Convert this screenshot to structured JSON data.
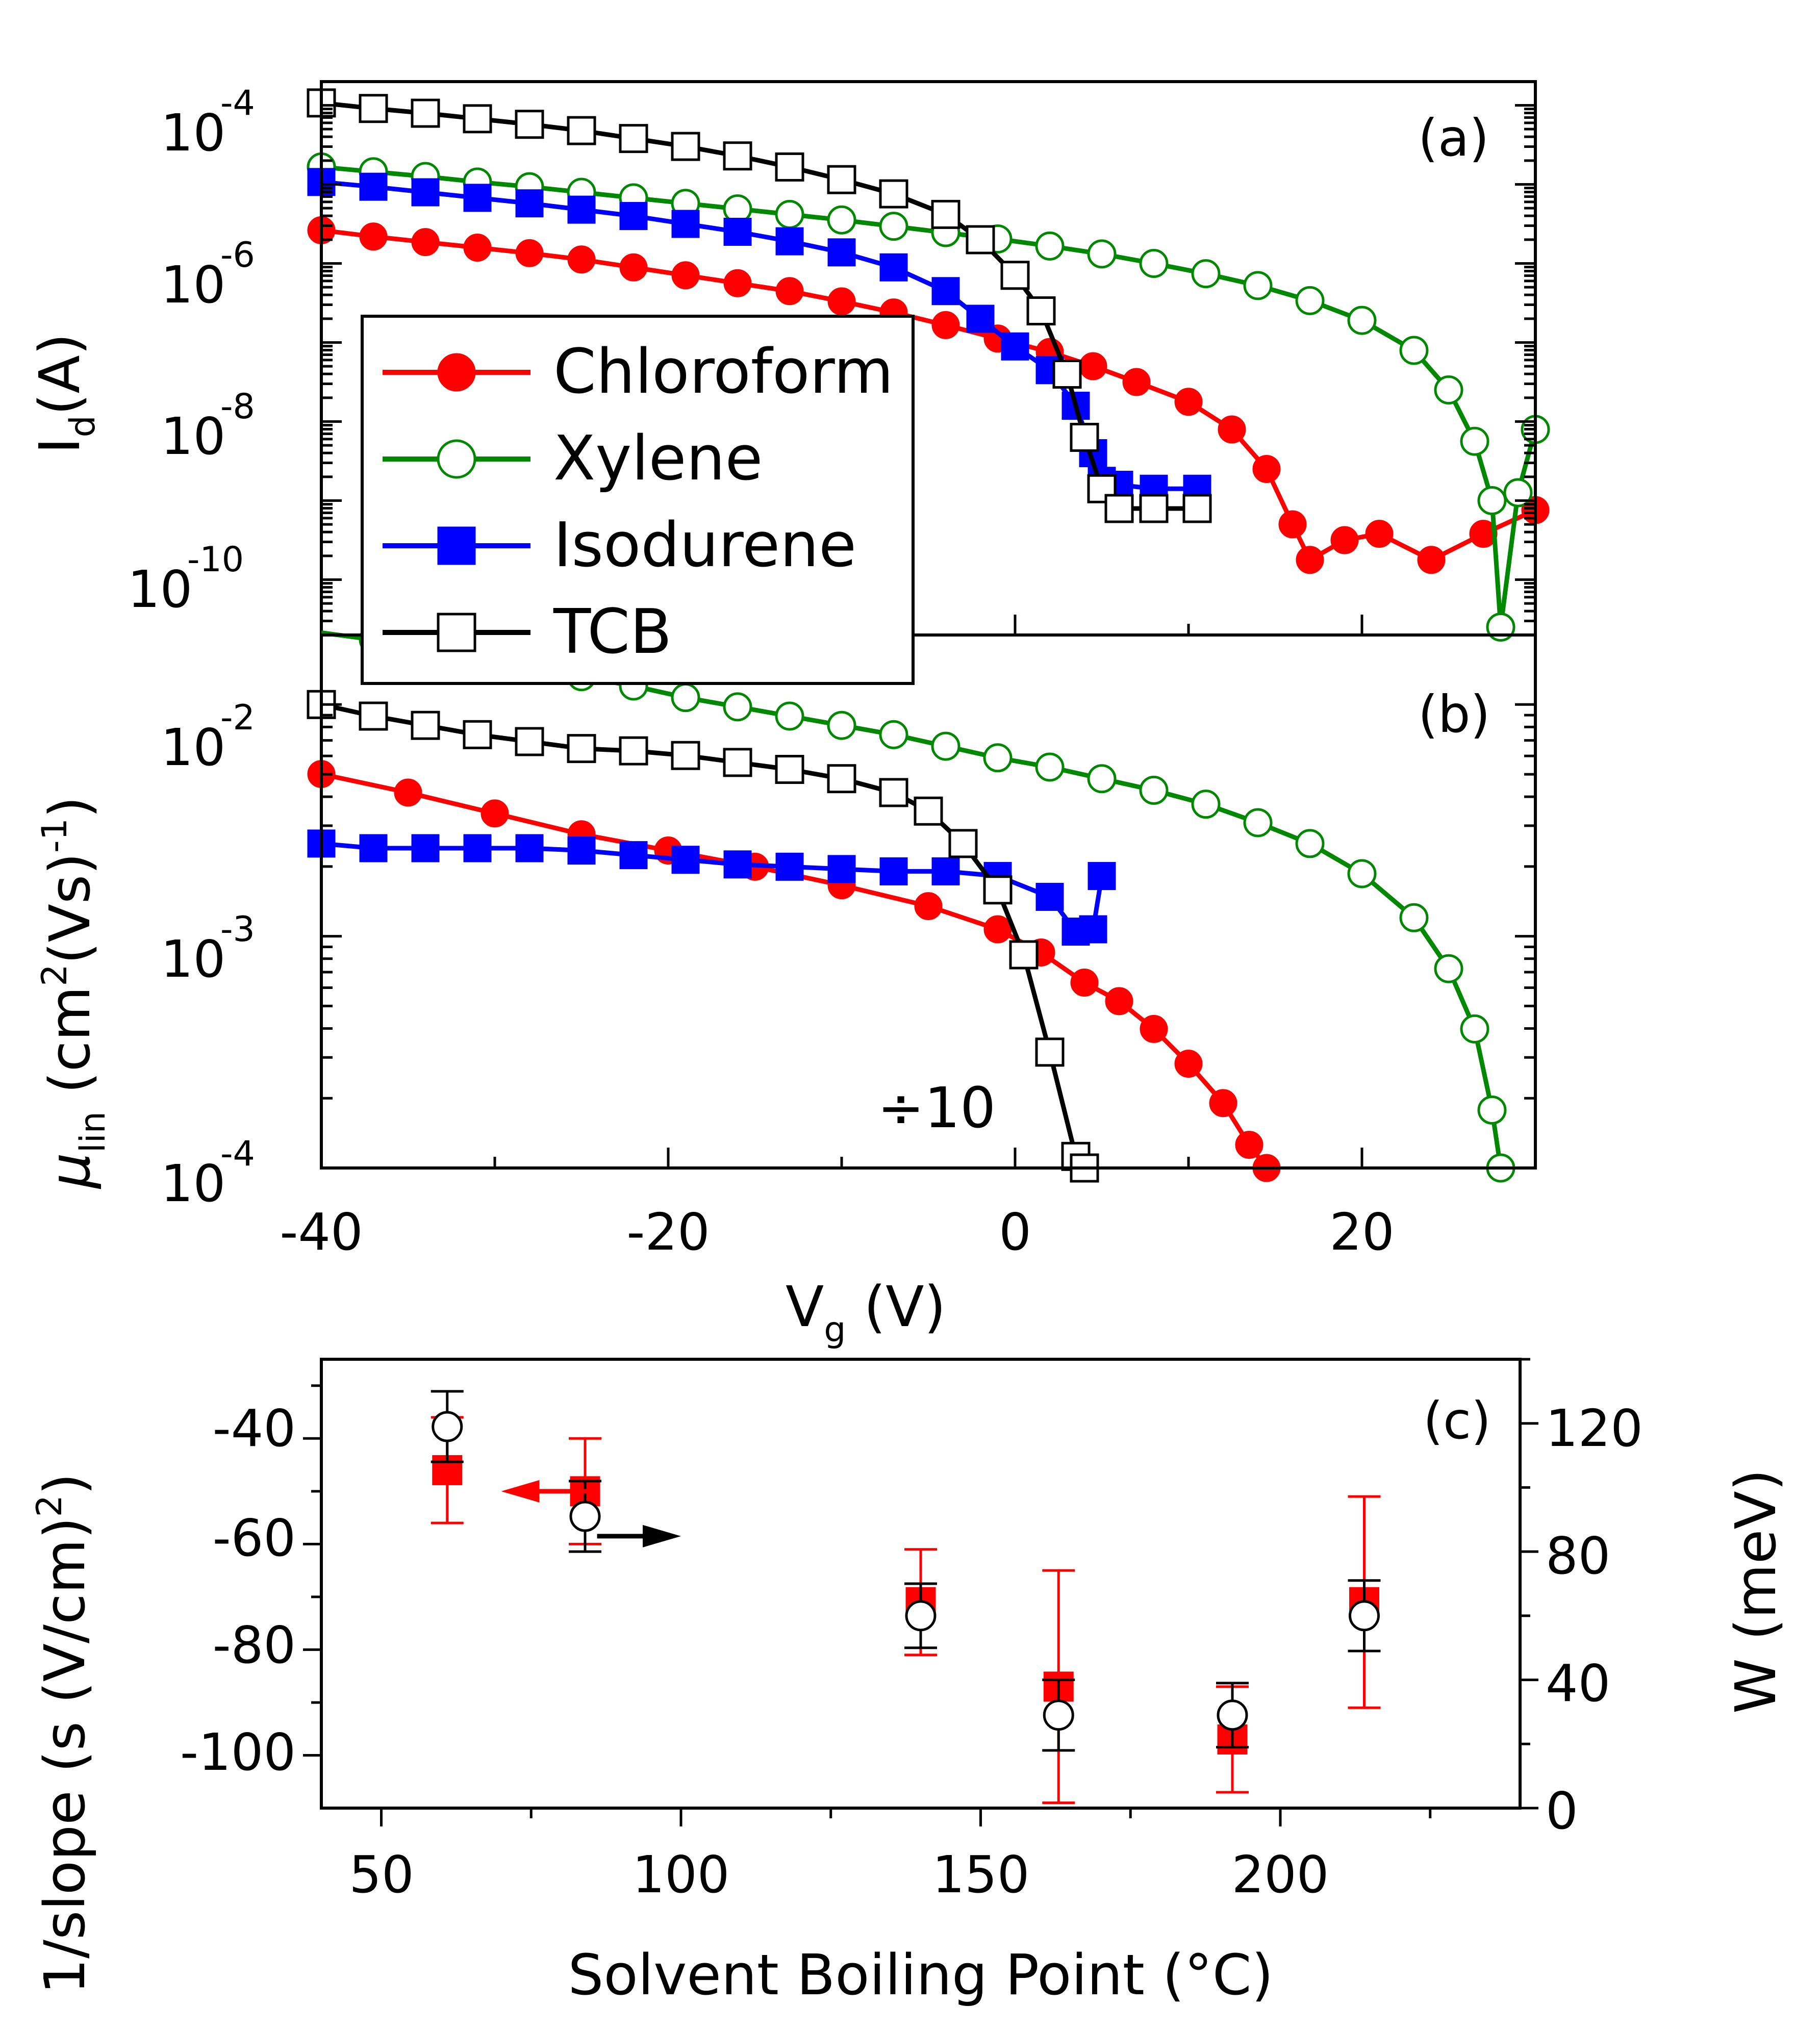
{
  "chart_data": [
    {
      "panel": "(a)",
      "type": "line",
      "xscale": "linear",
      "yscale": "log",
      "xlim": [
        -40,
        30
      ],
      "ylim_exp": [
        -10.7,
        -3.7
      ],
      "xlabel": "",
      "ylabel": "I",
      "ylabel_sub": "d",
      "ylabel_tail": "(A)",
      "ytick_exponents": [
        -4,
        -6,
        -8,
        -10
      ],
      "ytick_base": "10",
      "ytick_labels": [
        "-4",
        "-6",
        "-8",
        "-10"
      ],
      "legend_position": "center-left",
      "series": [
        {
          "name": "Chloroform",
          "color": "#ff0000",
          "marker": "filled-circle",
          "points": [
            [
              -40,
              -5.58
            ],
            [
              -37,
              -5.66
            ],
            [
              -34,
              -5.73
            ],
            [
              -31,
              -5.8
            ],
            [
              -28,
              -5.87
            ],
            [
              -25,
              -5.95
            ],
            [
              -22,
              -6.05
            ],
            [
              -19,
              -6.15
            ],
            [
              -16,
              -6.25
            ],
            [
              -13,
              -6.35
            ],
            [
              -10,
              -6.48
            ],
            [
              -7,
              -6.62
            ],
            [
              -4,
              -6.78
            ],
            [
              -1,
              -6.95
            ],
            [
              2,
              -7.12
            ],
            [
              4.5,
              -7.3
            ],
            [
              7,
              -7.5
            ],
            [
              10,
              -7.75
            ],
            [
              12.5,
              -8.1
            ],
            [
              14.5,
              -8.6
            ],
            [
              16,
              -9.3
            ],
            [
              17,
              -9.75
            ],
            [
              19,
              -9.5
            ],
            [
              21,
              -9.42
            ],
            [
              24,
              -9.75
            ],
            [
              27,
              -9.42
            ],
            [
              30,
              -9.12
            ]
          ]
        },
        {
          "name": "Xylene",
          "color": "#008800",
          "marker": "open-circle",
          "points": [
            [
              -40,
              -4.78
            ],
            [
              -37,
              -4.84
            ],
            [
              -34,
              -4.9
            ],
            [
              -31,
              -4.97
            ],
            [
              -28,
              -5.03
            ],
            [
              -25,
              -5.1
            ],
            [
              -22,
              -5.17
            ],
            [
              -19,
              -5.24
            ],
            [
              -16,
              -5.31
            ],
            [
              -13,
              -5.38
            ],
            [
              -10,
              -5.45
            ],
            [
              -7,
              -5.53
            ],
            [
              -4,
              -5.61
            ],
            [
              -1,
              -5.69
            ],
            [
              2,
              -5.78
            ],
            [
              5,
              -5.88
            ],
            [
              8,
              -6.0
            ],
            [
              11,
              -6.13
            ],
            [
              14,
              -6.28
            ],
            [
              17,
              -6.47
            ],
            [
              20,
              -6.72
            ],
            [
              23,
              -7.1
            ],
            [
              25,
              -7.6
            ],
            [
              26.5,
              -8.25
            ],
            [
              27.5,
              -9.0
            ],
            [
              28,
              -10.6
            ],
            [
              29,
              -8.9
            ],
            [
              30,
              -8.1
            ]
          ]
        },
        {
          "name": "Isodurene",
          "color": "#0000ff",
          "marker": "filled-square",
          "points": [
            [
              -40,
              -4.97
            ],
            [
              -37,
              -5.03
            ],
            [
              -34,
              -5.1
            ],
            [
              -31,
              -5.17
            ],
            [
              -28,
              -5.24
            ],
            [
              -25,
              -5.32
            ],
            [
              -22,
              -5.4
            ],
            [
              -19,
              -5.5
            ],
            [
              -16,
              -5.6
            ],
            [
              -13,
              -5.72
            ],
            [
              -10,
              -5.86
            ],
            [
              -7,
              -6.05
            ],
            [
              -4,
              -6.35
            ],
            [
              -2,
              -6.7
            ],
            [
              0,
              -7.05
            ],
            [
              2,
              -7.35
            ],
            [
              3.5,
              -7.8
            ],
            [
              4.5,
              -8.4
            ],
            [
              5,
              -8.75
            ],
            [
              6,
              -8.8
            ],
            [
              8,
              -8.85
            ],
            [
              10.5,
              -8.85
            ]
          ]
        },
        {
          "name": "TCB",
          "color": "#000000",
          "marker": "open-square",
          "points": [
            [
              -40,
              -3.97
            ],
            [
              -37,
              -4.04
            ],
            [
              -34,
              -4.1
            ],
            [
              -31,
              -4.17
            ],
            [
              -28,
              -4.24
            ],
            [
              -25,
              -4.32
            ],
            [
              -22,
              -4.42
            ],
            [
              -19,
              -4.52
            ],
            [
              -16,
              -4.64
            ],
            [
              -13,
              -4.78
            ],
            [
              -10,
              -4.94
            ],
            [
              -7,
              -5.12
            ],
            [
              -4,
              -5.38
            ],
            [
              -2,
              -5.7
            ],
            [
              0,
              -6.15
            ],
            [
              1.5,
              -6.6
            ],
            [
              3,
              -7.4
            ],
            [
              4,
              -8.2
            ],
            [
              5,
              -8.85
            ],
            [
              6,
              -9.1
            ],
            [
              8,
              -9.1
            ],
            [
              10.5,
              -9.1
            ]
          ]
        }
      ]
    },
    {
      "panel": "(b)",
      "type": "line",
      "xscale": "linear",
      "yscale": "log",
      "xlim": [
        -40,
        30
      ],
      "ylim_exp": [
        -4,
        -1.7
      ],
      "xlabel": "V",
      "xlabel_sub": "g",
      "xlabel_tail": " (V)",
      "xticks": [
        -40,
        -20,
        0,
        20
      ],
      "xtick_labels": [
        "-40",
        "-20",
        "0",
        "20"
      ],
      "ylabel_mu": "μ",
      "ylabel_mu_sub": "lin",
      "ylabel_head": " (cm",
      "ylabel_sup2": "2",
      "ylabel_mid": "(Vs)",
      "ylabel_sup_neg1": "-1",
      "ylabel_close": ")",
      "ytick_exponents": [
        -2,
        -3,
        -4
      ],
      "ytick_base": "10",
      "ytick_labels": [
        "-2",
        "-3",
        "-4"
      ],
      "annotation": "÷10",
      "series": [
        {
          "name": "Chloroform",
          "color": "#ff0000",
          "marker": "filled-circle",
          "points": [
            [
              -40,
              -2.3
            ],
            [
              -35,
              -2.38
            ],
            [
              -30,
              -2.47
            ],
            [
              -25,
              -2.56
            ],
            [
              -20,
              -2.63
            ],
            [
              -15,
              -2.7
            ],
            [
              -10,
              -2.78
            ],
            [
              -5,
              -2.87
            ],
            [
              -1,
              -2.97
            ],
            [
              1.5,
              -3.07
            ],
            [
              4,
              -3.2
            ],
            [
              6,
              -3.28
            ],
            [
              8,
              -3.4
            ],
            [
              10,
              -3.55
            ],
            [
              12,
              -3.72
            ],
            [
              13.5,
              -3.9
            ],
            [
              14.5,
              -4.0
            ]
          ]
        },
        {
          "name": "Xylene",
          "color": "#008800",
          "marker": "open-circle",
          "points": [
            [
              -40,
              -1.69
            ],
            [
              -37,
              -1.72
            ],
            [
              -34,
              -1.76
            ],
            [
              -31,
              -1.8
            ],
            [
              -28,
              -1.84
            ],
            [
              -25,
              -1.88
            ],
            [
              -22,
              -1.92
            ],
            [
              -19,
              -1.97
            ],
            [
              -16,
              -2.01
            ],
            [
              -13,
              -2.05
            ],
            [
              -10,
              -2.09
            ],
            [
              -7,
              -2.13
            ],
            [
              -4,
              -2.18
            ],
            [
              -1,
              -2.23
            ],
            [
              2,
              -2.27
            ],
            [
              5,
              -2.32
            ],
            [
              8,
              -2.37
            ],
            [
              11,
              -2.43
            ],
            [
              14,
              -2.51
            ],
            [
              17,
              -2.6
            ],
            [
              20,
              -2.73
            ],
            [
              23,
              -2.92
            ],
            [
              25,
              -3.14
            ],
            [
              26.5,
              -3.4
            ],
            [
              27.5,
              -3.75
            ],
            [
              28,
              -4.0
            ]
          ]
        },
        {
          "name": "Isodurene",
          "color": "#0000ff",
          "marker": "filled-square",
          "points": [
            [
              -40,
              -2.6
            ],
            [
              -37,
              -2.62
            ],
            [
              -34,
              -2.62
            ],
            [
              -31,
              -2.62
            ],
            [
              -28,
              -2.62
            ],
            [
              -25,
              -2.63
            ],
            [
              -22,
              -2.65
            ],
            [
              -19,
              -2.67
            ],
            [
              -16,
              -2.69
            ],
            [
              -13,
              -2.7
            ],
            [
              -10,
              -2.71
            ],
            [
              -7,
              -2.72
            ],
            [
              -4,
              -2.72
            ],
            [
              -1,
              -2.74
            ],
            [
              2,
              -2.83
            ],
            [
              3.5,
              -2.98
            ],
            [
              4.5,
              -2.97
            ],
            [
              5,
              -2.74
            ]
          ]
        },
        {
          "name": "TCB",
          "color": "#000000",
          "marker": "open-square",
          "points": [
            [
              -40,
              -2.0
            ],
            [
              -37,
              -2.05
            ],
            [
              -34,
              -2.09
            ],
            [
              -31,
              -2.13
            ],
            [
              -28,
              -2.16
            ],
            [
              -25,
              -2.19
            ],
            [
              -22,
              -2.2
            ],
            [
              -19,
              -2.22
            ],
            [
              -16,
              -2.25
            ],
            [
              -13,
              -2.28
            ],
            [
              -10,
              -2.32
            ],
            [
              -7,
              -2.38
            ],
            [
              -5,
              -2.46
            ],
            [
              -3,
              -2.6
            ],
            [
              -1,
              -2.8
            ],
            [
              0.5,
              -3.08
            ],
            [
              2,
              -3.5
            ],
            [
              3.5,
              -3.95
            ],
            [
              4,
              -4.0
            ]
          ]
        }
      ]
    },
    {
      "panel": "(c)",
      "type": "scatter",
      "xlim": [
        40,
        240
      ],
      "ylim": [
        -110,
        -25
      ],
      "y2lim": [
        0,
        140
      ],
      "xlabel": "Solvent Boiling Point (°C)",
      "ylabel_head": "1/slope (s (V/cm)",
      "ylabel_sup": "2",
      "ylabel_tail": ")",
      "y2label": "W (meV)",
      "xticks": [
        50,
        100,
        150,
        200
      ],
      "xtick_labels": [
        "50",
        "100",
        "150",
        "200"
      ],
      "yticks": [
        -40,
        -60,
        -80,
        -100
      ],
      "ytick_labels": [
        "-40",
        "-60",
        "-80",
        "-100"
      ],
      "y2ticks": [
        120,
        80,
        40,
        0
      ],
      "y2tick_labels": [
        "120",
        "80",
        "40",
        "0"
      ],
      "series": [
        {
          "name": "1/slope",
          "axis": "left",
          "color": "#ff0000",
          "marker": "filled-square",
          "points": [
            {
              "x": 61,
              "y": -46,
              "err": 10
            },
            {
              "x": 84,
              "y": -50,
              "err": 10
            },
            {
              "x": 140,
              "y": -71,
              "err": 10
            },
            {
              "x": 163,
              "y": -87,
              "err": 22
            },
            {
              "x": 192,
              "y": -97,
              "err": 10
            },
            {
              "x": 214,
              "y": -71,
              "err": 20
            }
          ]
        },
        {
          "name": "W",
          "axis": "right",
          "color": "#000000",
          "marker": "open-circle",
          "points": [
            {
              "x": 61,
              "y": 119,
              "err": 11
            },
            {
              "x": 84,
              "y": 91,
              "err": 11
            },
            {
              "x": 140,
              "y": 60,
              "err": 10
            },
            {
              "x": 163,
              "y": 29,
              "err": 11
            },
            {
              "x": 192,
              "y": 29,
              "err": 10
            },
            {
              "x": 214,
              "y": 60,
              "err": 11
            }
          ]
        }
      ],
      "arrows": [
        {
          "from_series": "1/slope",
          "direction": "left",
          "color": "#ff0000",
          "x_data": [
            85,
            70
          ],
          "y_data": -50
        },
        {
          "from_series": "W",
          "direction": "right",
          "color": "#000000",
          "x_data": [
            86,
            100
          ],
          "y_data": -58.5
        }
      ]
    }
  ],
  "legend": {
    "entries": [
      {
        "label": "Chloroform",
        "color": "#ff0000",
        "marker": "filled-circle"
      },
      {
        "label": "Xylene",
        "color": "#008800",
        "marker": "open-circle"
      },
      {
        "label": "Isodurene",
        "color": "#0000ff",
        "marker": "filled-square"
      },
      {
        "label": "TCB",
        "color": "#000000",
        "marker": "open-square"
      }
    ]
  }
}
